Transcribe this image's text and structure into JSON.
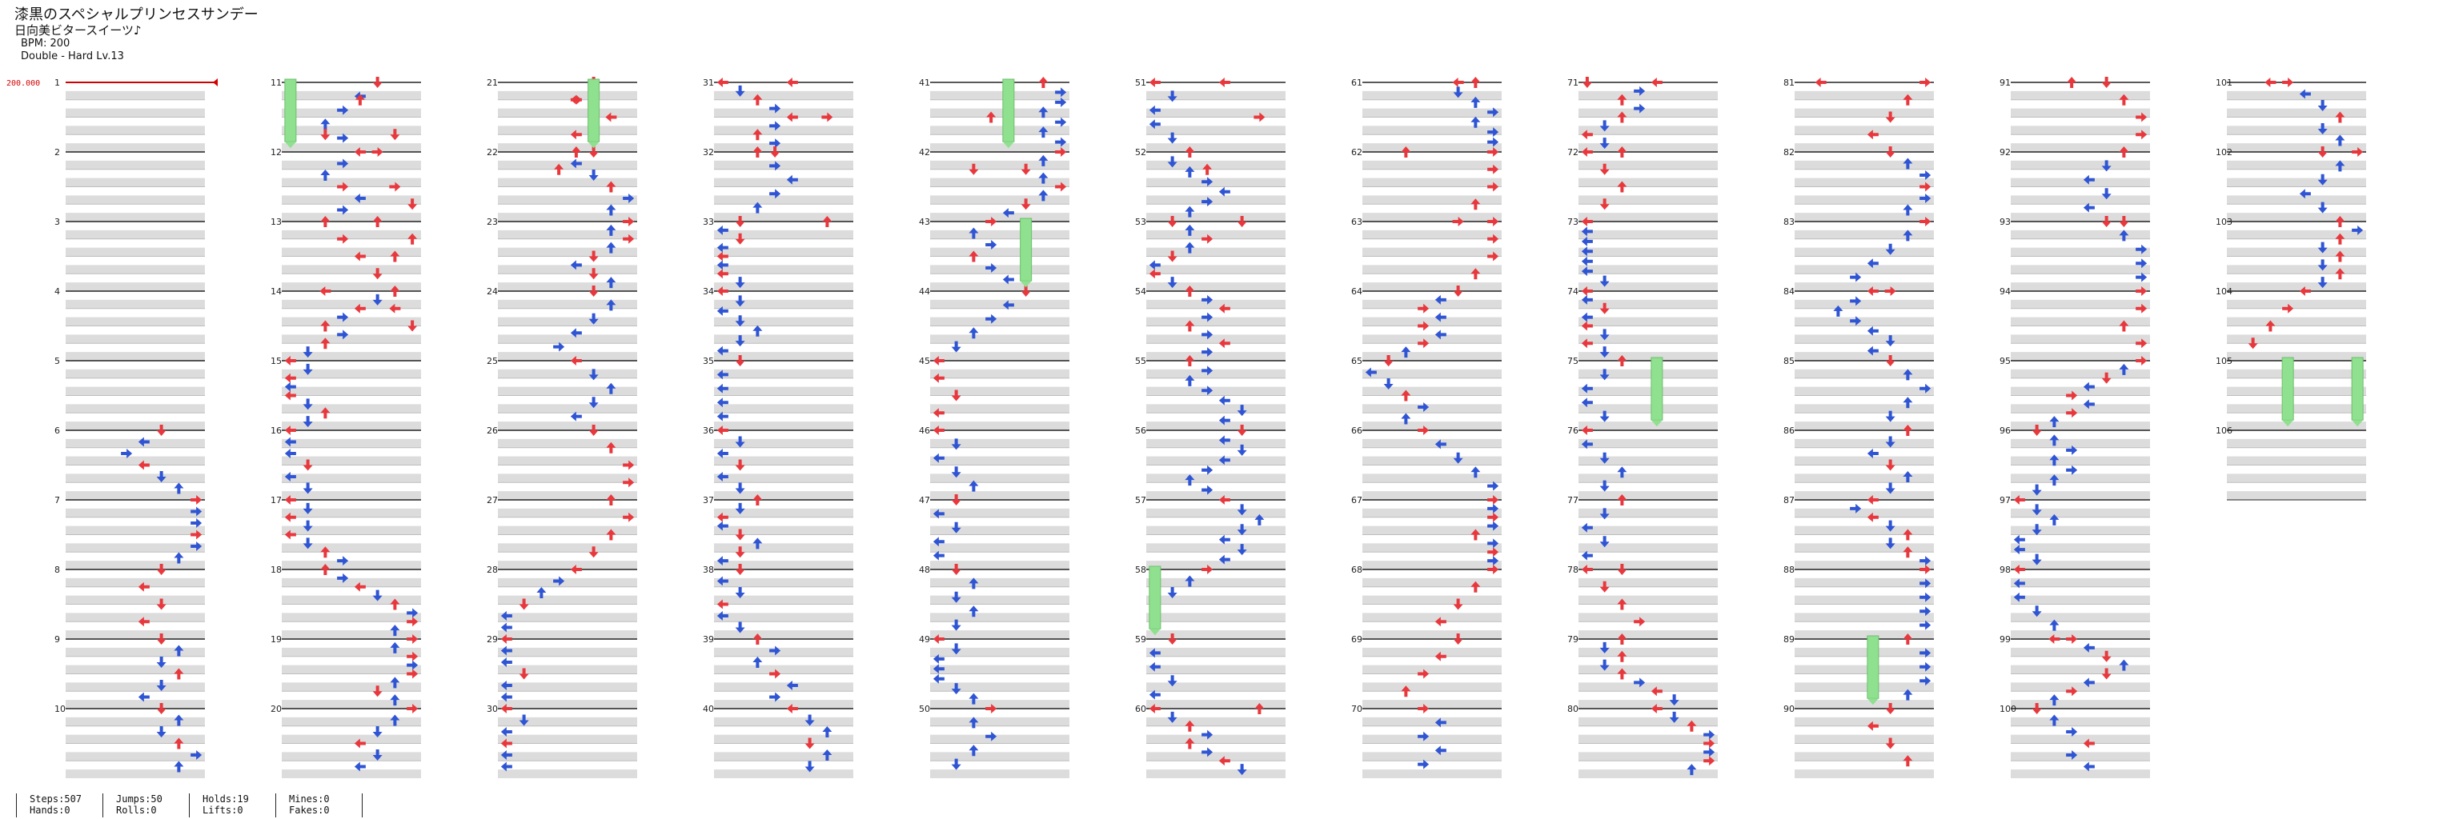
{
  "song": {
    "title": "漆黒のスペシャルプリンセスサンデー",
    "artist": "日向美ビタースイーツ♪",
    "bpm": "BPM: 200",
    "difficulty": "Double - Hard  Lv.13"
  },
  "bpm_marker": "200.000",
  "measures": [
    "1",
    "2",
    "3",
    "4",
    "5",
    "6",
    "7",
    "8",
    "9",
    "10",
    "11",
    "12",
    "13",
    "14",
    "15",
    "16",
    "17",
    "18",
    "19",
    "20",
    "21",
    "22",
    "23",
    "24",
    "25",
    "26",
    "27",
    "28",
    "29",
    "30",
    "31",
    "32",
    "33",
    "34",
    "35",
    "36",
    "37",
    "38",
    "39",
    "40",
    "41",
    "42",
    "43",
    "44",
    "45",
    "46",
    "47",
    "48",
    "49",
    "50",
    "51",
    "52",
    "53",
    "54",
    "55",
    "56",
    "57",
    "58",
    "59",
    "60",
    "61",
    "62",
    "63",
    "64",
    "65",
    "66",
    "67",
    "68",
    "69",
    "70",
    "71",
    "72",
    "73",
    "74",
    "75",
    "76",
    "77",
    "78",
    "79",
    "80",
    "81",
    "82",
    "83",
    "84",
    "85",
    "86",
    "87",
    "88",
    "89",
    "90",
    "91",
    "92",
    "93",
    "94",
    "95",
    "96",
    "97",
    "98",
    "99",
    "100",
    "101",
    "102",
    "103",
    "104",
    "105",
    "106"
  ],
  "colors": {
    "quarter": "#e8383d",
    "eighth": "#2f55d4",
    "hold": "#8fe08f",
    "bpm": "#d40000",
    "band": "#dcdcdc"
  },
  "stats": {
    "steps": "Steps:507",
    "hands": "Hands:0",
    "jumps": "Jumps:50",
    "rolls": "Rolls:0",
    "holds": "Holds:19",
    "lifts": "Lifts:0",
    "mines": "Mines:0",
    "fakes": "Fakes:0"
  },
  "chart_data": {
    "type": "table",
    "mode": "Double (8 lanes)",
    "measure_count": 106,
    "notes": [
      [
        11,
        0,
        0,
        "hold"
      ],
      [
        11,
        0.25,
        4,
        "up"
      ],
      [
        11,
        0.75,
        6,
        "down"
      ],
      [
        11,
        0.75,
        2,
        "down"
      ],
      [
        12,
        0,
        5,
        "right"
      ],
      [
        12,
        0.5,
        6,
        "right"
      ],
      [
        12,
        0.75,
        7,
        "down"
      ],
      [
        13,
        0,
        5,
        "up"
      ],
      [
        13,
        0.25,
        7,
        "up"
      ],
      [
        13,
        0.5,
        6,
        "up"
      ],
      [
        14,
        0,
        2,
        "left"
      ],
      [
        14,
        0.25,
        6,
        "left"
      ],
      [
        14,
        0.5,
        7,
        "down"
      ],
      [
        21,
        0,
        5,
        "hold"
      ],
      [
        21,
        0.25,
        4,
        "right"
      ],
      [
        21,
        0.5,
        6,
        "left"
      ],
      [
        22,
        0,
        4,
        "up"
      ],
      [
        22,
        0.25,
        3,
        "up"
      ],
      [
        31,
        0,
        4,
        "left"
      ],
      [
        31,
        0.5,
        6,
        "right"
      ],
      [
        32,
        0,
        3,
        "down"
      ],
      [
        33,
        0,
        6,
        "up"
      ],
      [
        41,
        0,
        4,
        "hold"
      ],
      [
        41,
        0.5,
        3,
        "up"
      ],
      [
        42,
        0.25,
        2,
        "down"
      ],
      [
        43,
        0,
        5,
        "hold"
      ],
      [
        51,
        0,
        4,
        "left"
      ],
      [
        51,
        0.5,
        6,
        "right"
      ],
      [
        52,
        0.25,
        3,
        "up"
      ],
      [
        53,
        0,
        5,
        "down"
      ],
      [
        58,
        0,
        0,
        "hold"
      ],
      [
        60,
        0,
        6,
        "up"
      ],
      [
        61,
        0,
        5,
        "left"
      ],
      [
        62,
        0,
        2,
        "up"
      ],
      [
        63,
        0,
        5,
        "right"
      ],
      [
        65,
        0,
        1,
        "down"
      ],
      [
        71,
        0,
        0,
        "down"
      ],
      [
        72,
        0,
        2,
        "up"
      ],
      [
        75,
        0,
        4,
        "hold"
      ],
      [
        78,
        0,
        2,
        "down"
      ],
      [
        81,
        0,
        1,
        "left"
      ],
      [
        84,
        0,
        5,
        "right"
      ],
      [
        89,
        0,
        4,
        "hold"
      ],
      [
        91,
        0,
        3,
        "up"
      ],
      [
        93,
        0,
        6,
        "down"
      ],
      [
        99,
        0,
        2,
        "left"
      ],
      [
        101,
        0,
        2,
        "left"
      ],
      [
        102,
        0,
        5,
        "down"
      ],
      [
        105,
        0,
        3,
        "hold"
      ],
      [
        105,
        0,
        7,
        "hold"
      ]
    ]
  }
}
